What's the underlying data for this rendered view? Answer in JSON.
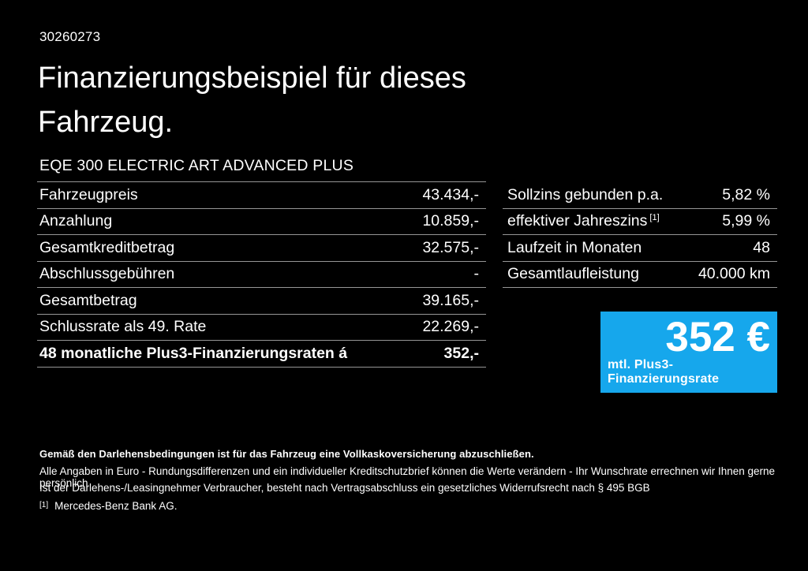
{
  "colors": {
    "background": "#000000",
    "text": "#ffffff",
    "divider": "#969696",
    "accent_blue": "#16a7ec"
  },
  "header": {
    "doc_id": "30260273",
    "title_line1": "Finanzierungsbeispiel für dieses",
    "title_line2": "Fahrzeug.",
    "vehicle_model": "EQE 300 ELECTRIC ART ADVANCED PLUS"
  },
  "finance_table": {
    "rows": [
      {
        "label": "Fahrzeugpreis",
        "value": "43.434,-"
      },
      {
        "label": "Anzahlung",
        "value": "10.859,-"
      },
      {
        "label": "Gesamtkreditbetrag",
        "value": "32.575,-"
      },
      {
        "label": "Abschlussgebühren",
        "value": "-"
      },
      {
        "label": "Gesamtbetrag",
        "value": "39.165,-"
      },
      {
        "label": "Schlussrate als 49. Rate",
        "value": "22.269,-"
      },
      {
        "label": "48 monatliche Plus3-Finanzierungsraten á",
        "value": "352,-"
      }
    ]
  },
  "conditions_table": {
    "rows": [
      {
        "label": "Sollzins gebunden p.a.",
        "sup": "",
        "value": "5,82 %"
      },
      {
        "label": "effektiver Jahreszins",
        "sup": "[1]",
        "value": "5,99 %"
      },
      {
        "label": "Laufzeit in Monaten",
        "sup": "",
        "value": "48"
      },
      {
        "label": "Gesamtlaufleistung",
        "sup": "",
        "value": "40.000 km"
      }
    ]
  },
  "rate_box": {
    "amount": "352 €",
    "caption": "mtl. Plus3-Finanzierungsrate",
    "background": "#16a7ec"
  },
  "footer": {
    "bold_note": "Gemäß den Darlehensbedingungen ist für das Fahrzeug eine Vollkaskoversicherung abzuschließen.",
    "note_line1": "Alle Angaben in Euro - Rundungsdifferenzen und ein individueller Kreditschutzbrief können die Werte verändern - Ihr Wunschrate errechnen wir Ihnen gerne persönlich",
    "note_line2": "Ist der Darlehens-/Leasingnehmer Verbraucher, besteht nach Vertragsabschluss ein gesetzliches Widerrufsrecht nach § 495 BGB",
    "footnote_marker": "[1]",
    "footnote_text": "Mercedes-Benz Bank AG."
  }
}
